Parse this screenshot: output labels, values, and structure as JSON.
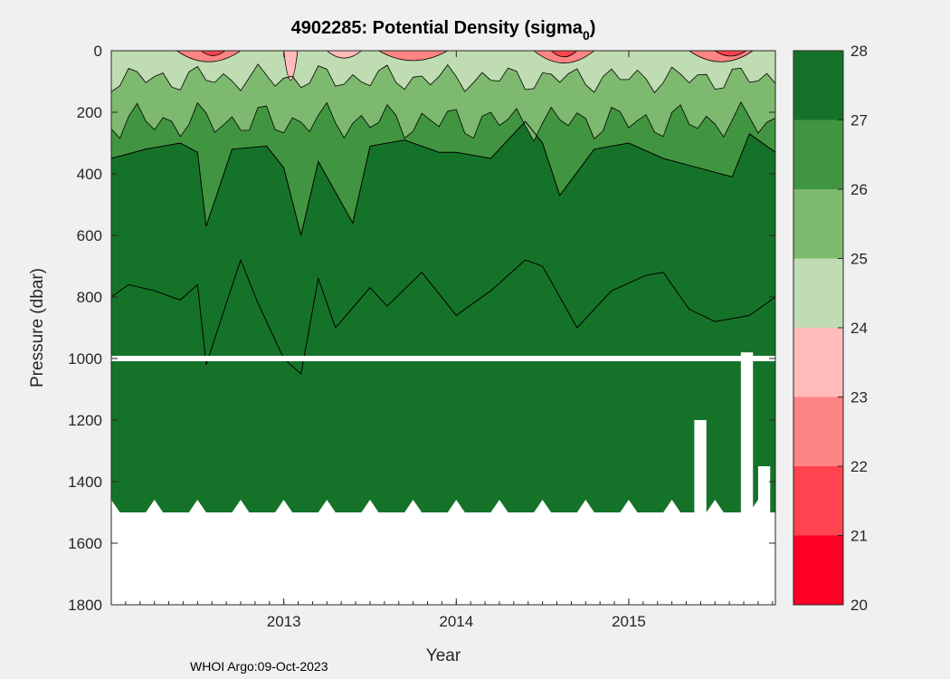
{
  "footer": "WHOI Argo:09-Oct-2023",
  "chart_data": {
    "type": "contour",
    "title": "4902285: Potential Density (sigma",
    "title_subscript": "0",
    "title_suffix": ")",
    "xlabel": "Year",
    "ylabel": "Pressure (dbar)",
    "xlim": [
      2012.0,
      2015.85
    ],
    "ylim": [
      0,
      1800
    ],
    "y_reversed": true,
    "xticks": [
      2013,
      2014,
      2015
    ],
    "xtick_labels": [
      "2013",
      "2014",
      "2015"
    ],
    "yticks": [
      0,
      200,
      400,
      600,
      800,
      1000,
      1200,
      1400,
      1600,
      1800
    ],
    "ytick_labels": [
      "0",
      "200",
      "400",
      "600",
      "800",
      "1000",
      "1200",
      "1400",
      "1600",
      "1800"
    ],
    "grid": true,
    "colorbar": {
      "levels": [
        20,
        21,
        22,
        23,
        24,
        25,
        26,
        27,
        28
      ],
      "tick_labels": [
        "20",
        "21",
        "22",
        "23",
        "24",
        "25",
        "26",
        "27",
        "28"
      ],
      "colors": [
        "#ff0026",
        "#ff434f",
        "#ff8484",
        "#ffbcba",
        "#c0dcb2",
        "#7db96f",
        "#419540",
        "#157329"
      ]
    },
    "contours": [
      {
        "level": 26.5,
        "depth_x": [
          2012.0,
          2012.2,
          2012.4,
          2012.5,
          2012.55,
          2012.7,
          2012.9,
          2013.0,
          2013.1,
          2013.2,
          2013.4,
          2013.5,
          2013.7,
          2013.9,
          2014.0,
          2014.2,
          2014.4,
          2014.5,
          2014.6,
          2014.8,
          2015.0,
          2015.2,
          2015.4,
          2015.6,
          2015.7,
          2015.85
        ],
        "depth": [
          350,
          320,
          300,
          330,
          570,
          320,
          310,
          380,
          600,
          360,
          560,
          310,
          290,
          330,
          330,
          350,
          230,
          300,
          470,
          320,
          300,
          350,
          380,
          410,
          270,
          330
        ]
      },
      {
        "level": 27.5,
        "depth_x": [
          2012.0,
          2012.1,
          2012.25,
          2012.4,
          2012.5,
          2012.55,
          2012.65,
          2012.75,
          2012.85,
          2013.0,
          2013.1,
          2013.2,
          2013.3,
          2013.5,
          2013.6,
          2013.8,
          2014.0,
          2014.2,
          2014.4,
          2014.5,
          2014.7,
          2014.9,
          2015.1,
          2015.2,
          2015.35,
          2015.5,
          2015.7,
          2015.85
        ],
        "depth": [
          800,
          760,
          780,
          810,
          760,
          1020,
          850,
          680,
          820,
          1000,
          1050,
          740,
          900,
          770,
          830,
          720,
          860,
          780,
          680,
          700,
          900,
          780,
          730,
          720,
          840,
          880,
          860,
          800
        ]
      }
    ],
    "missing_band_pressure": 1000,
    "profile_max_pressure": 1500
  }
}
